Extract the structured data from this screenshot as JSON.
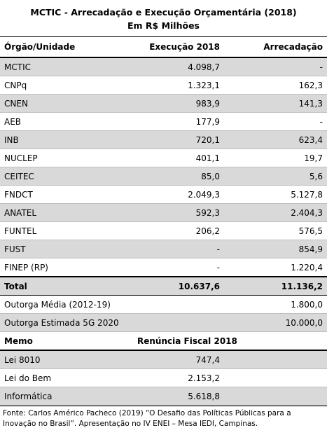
{
  "header": {
    "title": "MCTIC - Arrecadação e Execução Orçamentária (2018)",
    "subtitle": "Em R$ Milhões"
  },
  "table": {
    "columns": [
      "Órgão/Unidade",
      "Execução 2018",
      "Arrecadação"
    ],
    "rows": [
      {
        "label": "MCTIC",
        "execucao": "4.098,7",
        "arrecadacao": "-"
      },
      {
        "label": "CNPq",
        "execucao": "1.323,1",
        "arrecadacao": "162,3"
      },
      {
        "label": "CNEN",
        "execucao": "983,9",
        "arrecadacao": "141,3"
      },
      {
        "label": "AEB",
        "execucao": "177,9",
        "arrecadacao": "-"
      },
      {
        "label": "INB",
        "execucao": "720,1",
        "arrecadacao": "623,4"
      },
      {
        "label": "NUCLEP",
        "execucao": "401,1",
        "arrecadacao": "19,7"
      },
      {
        "label": "CEITEC",
        "execucao": "85,0",
        "arrecadacao": "5,6"
      },
      {
        "label": "FNDCT",
        "execucao": "2.049,3",
        "arrecadacao": "5.127,8"
      },
      {
        "label": "ANATEL",
        "execucao": "592,3",
        "arrecadacao": "2.404,3"
      },
      {
        "label": "FUNTEL",
        "execucao": "206,2",
        "arrecadacao": "576,5"
      },
      {
        "label": "FUST",
        "execucao": "-",
        "arrecadacao": "854,9"
      },
      {
        "label": "FINEP (RP)",
        "execucao": "-",
        "arrecadacao": "1.220,4"
      }
    ],
    "total": {
      "label": "Total",
      "execucao": "10.637,6",
      "arrecadacao": "11.136,2"
    },
    "extra_rows": [
      {
        "label": "Outorga Média (2012-19)",
        "arrecadacao": "1.800,0"
      },
      {
        "label": "Outorga Estimada 5G 2020",
        "arrecadacao": "10.000,0"
      }
    ]
  },
  "memo": {
    "columns": [
      "Memo",
      "Renúncia Fiscal 2018"
    ],
    "rows": [
      {
        "label": "Lei 8010",
        "renuncia": "747,4"
      },
      {
        "label": "Lei do Bem",
        "renuncia": "2.153,2"
      },
      {
        "label": "Informática",
        "renuncia": "5.618,8"
      }
    ]
  },
  "source": "Fonte: Carlos Américo Pacheco (2019) “O Desafio das Políticas Públicas para a Inovação no Brasil”. Apresentação no IV ENEI – Mesa IEDI, Campinas."
}
